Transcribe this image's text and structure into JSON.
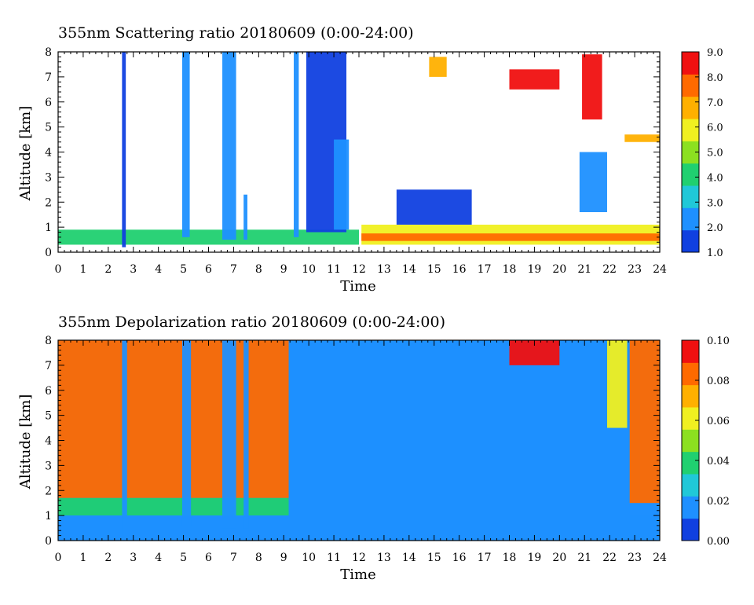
{
  "chart_data": [
    {
      "type": "heatmap",
      "title": "355nm Scattering ratio  20180609 (0:00-24:00)",
      "xlabel": "Time",
      "ylabel": "Altitude [km]",
      "xlim": [
        0,
        24
      ],
      "ylim": [
        0,
        8
      ],
      "xticks": [
        "0",
        "1",
        "2",
        "3",
        "4",
        "5",
        "6",
        "7",
        "8",
        "9",
        "10",
        "11",
        "12",
        "13",
        "14",
        "15",
        "16",
        "17",
        "18",
        "19",
        "20",
        "21",
        "22",
        "23",
        "24"
      ],
      "yticks": [
        "0",
        "1",
        "2",
        "3",
        "4",
        "5",
        "6",
        "7",
        "8"
      ],
      "colorbar": {
        "range": [
          1.0,
          9.0
        ],
        "ticks": [
          "1.0",
          "2.0",
          "3.0",
          "4.0",
          "5.0",
          "6.0",
          "7.0",
          "8.0",
          "9.0"
        ],
        "colors": [
          "#1040e0",
          "#1e90ff",
          "#20c8d8",
          "#20d070",
          "#8ce020",
          "#f0f020",
          "#ffb000",
          "#ff6a00",
          "#f01010"
        ]
      },
      "features": [
        {
          "x0": 0.0,
          "x1": 12.0,
          "y0": 0.3,
          "y1": 0.9,
          "level": 4.5
        },
        {
          "x0": 12.1,
          "x1": 24.0,
          "y0": 0.3,
          "y1": 1.1,
          "level": 5.5
        },
        {
          "x0": 12.1,
          "x1": 24.0,
          "y0": 0.45,
          "y1": 0.75,
          "level": 8.0
        },
        {
          "x0": 13.5,
          "x1": 16.5,
          "y0": 1.1,
          "y1": 2.5,
          "level": 1.6
        },
        {
          "x0": 2.55,
          "x1": 2.7,
          "y0": 0.2,
          "y1": 8.0,
          "level": 1.8
        },
        {
          "x0": 4.95,
          "x1": 5.25,
          "y0": 0.6,
          "y1": 8.0,
          "level": 1.9
        },
        {
          "x0": 6.55,
          "x1": 7.1,
          "y0": 0.5,
          "y1": 8.0,
          "level": 2.0
        },
        {
          "x0": 7.4,
          "x1": 7.55,
          "y0": 0.5,
          "y1": 2.3,
          "level": 1.9
        },
        {
          "x0": 9.4,
          "x1": 9.6,
          "y0": 0.6,
          "y1": 8.0,
          "level": 1.9
        },
        {
          "x0": 9.9,
          "x1": 11.5,
          "y0": 0.8,
          "y1": 8.0,
          "level": 1.6
        },
        {
          "x0": 11.0,
          "x1": 11.6,
          "y0": 0.9,
          "y1": 4.5,
          "level": 2.2
        },
        {
          "x0": 20.8,
          "x1": 21.9,
          "y0": 1.6,
          "y1": 4.0,
          "level": 2.1
        },
        {
          "x0": 20.9,
          "x1": 21.7,
          "y0": 5.3,
          "y1": 7.9,
          "level": 8.8
        },
        {
          "x0": 18.0,
          "x1": 20.0,
          "y0": 6.5,
          "y1": 7.3,
          "level": 8.5
        },
        {
          "x0": 22.6,
          "x1": 24.0,
          "y0": 4.4,
          "y1": 4.7,
          "level": 7.0
        },
        {
          "x0": 14.8,
          "x1": 15.5,
          "y0": 7.0,
          "y1": 7.8,
          "level": 6.5
        }
      ]
    },
    {
      "type": "heatmap",
      "title": "355nm Depolarization ratio  20180609 (0:00-24:00)",
      "xlabel": "Time",
      "ylabel": "Altitude [km]",
      "xlim": [
        0,
        24
      ],
      "ylim": [
        0,
        8
      ],
      "xticks": [
        "0",
        "1",
        "2",
        "3",
        "4",
        "5",
        "6",
        "7",
        "8",
        "9",
        "10",
        "11",
        "12",
        "13",
        "14",
        "15",
        "16",
        "17",
        "18",
        "19",
        "20",
        "21",
        "22",
        "23",
        "24"
      ],
      "yticks": [
        "0",
        "1",
        "2",
        "3",
        "4",
        "5",
        "6",
        "7",
        "8"
      ],
      "colorbar": {
        "range": [
          0.0,
          0.1
        ],
        "ticks": [
          "0.00",
          "0.02",
          "0.04",
          "0.06",
          "0.08",
          "0.10"
        ],
        "colors": [
          "#1040e0",
          "#1e90ff",
          "#20c8d8",
          "#20d070",
          "#8ce020",
          "#f0f020",
          "#ffb000",
          "#ff6a00",
          "#f01010"
        ]
      },
      "features": [
        {
          "x0": 0.0,
          "x1": 9.2,
          "y0": 1.7,
          "y1": 8.0,
          "level": 0.085
        },
        {
          "x0": 0.0,
          "x1": 9.2,
          "y0": 1.0,
          "y1": 1.7,
          "level": 0.04
        },
        {
          "x0": 0.0,
          "x1": 24.0,
          "y0": 0.0,
          "y1": 1.0,
          "level": 0.015
        },
        {
          "x0": 9.2,
          "x1": 22.8,
          "y0": 1.0,
          "y1": 8.0,
          "level": 0.022
        },
        {
          "x0": 22.8,
          "x1": 24.0,
          "y0": 1.5,
          "y1": 8.0,
          "level": 0.08
        },
        {
          "x0": 18.0,
          "x1": 20.0,
          "y0": 7.0,
          "y1": 8.0,
          "level": 0.09
        },
        {
          "x0": 21.9,
          "x1": 22.7,
          "y0": 4.5,
          "y1": 8.0,
          "level": 0.06
        },
        {
          "x0": 2.55,
          "x1": 2.75,
          "y0": 0.2,
          "y1": 8.0,
          "level": 0.02
        },
        {
          "x0": 4.95,
          "x1": 5.3,
          "y0": 0.6,
          "y1": 8.0,
          "level": 0.02
        },
        {
          "x0": 6.55,
          "x1": 7.1,
          "y0": 0.5,
          "y1": 8.0,
          "level": 0.02
        },
        {
          "x0": 7.4,
          "x1": 7.6,
          "y0": 0.5,
          "y1": 8.0,
          "level": 0.02
        }
      ]
    }
  ]
}
